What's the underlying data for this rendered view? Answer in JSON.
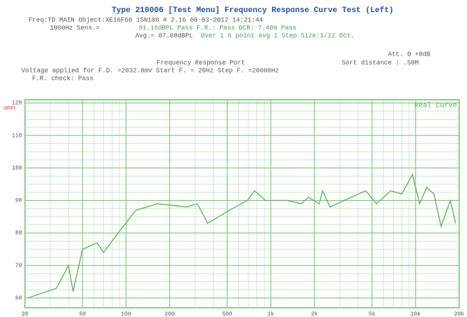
{
  "header": {
    "title": "Type 210006   [Test Menu] Frequency Response Curve Test (Left)",
    "line1": "Freq:TD MAIN      Object:XE16F60    1SN106      # 2.16   00-03-2012  14:21:44",
    "line2a": "1000Hz Sens.=",
    "line2b": "91.16dBPL Pass     F.R.: Pass    DCR:  7.400 Pass",
    "line3a": "Avg.= 87.08dBPL",
    "line3b": "Over 1 6 point avg   1   Step Size:1/12 Oct.",
    "att": "Att. 0  +0dB",
    "port": "Frequency Response Port",
    "sort": "Sort distance : .50M",
    "voltage": "Voltage applied for   F.D. =2032.8mV    Start F. =  20Hz      Step F. =20000Hz",
    "check": "F.R. check: Pass"
  },
  "chart_data": {
    "type": "line",
    "y_unit": "dBSPL",
    "xscale": "log",
    "grid": true,
    "legend": "top-right",
    "xlim": [
      20,
      20000
    ],
    "ylim": [
      57,
      121
    ],
    "xticks": [
      20,
      50,
      100,
      200,
      500,
      {
        "value": 1000,
        "label": "1k"
      },
      {
        "value": 2000,
        "label": "2k"
      },
      {
        "value": 5000,
        "label": "5k"
      },
      {
        "value": 10000,
        "label": "10k"
      },
      {
        "value": 20000,
        "label": "20k"
      }
    ],
    "yticks": [
      60,
      70,
      80,
      90,
      100,
      110,
      120
    ],
    "x": [
      21,
      33,
      40,
      43,
      50,
      63,
      70,
      88,
      117,
      165,
      261,
      310,
      367,
      518,
      688,
      772,
      916,
      1292,
      1622,
      1816,
      2158,
      2280,
      2560,
      3600,
      4520,
      5370,
      6740,
      8020,
      9510,
      10660,
      11940,
      13400,
      15000,
      17400,
      18900
    ],
    "series": [
      {
        "name": "Real Curve",
        "color": "#5fae5f",
        "values": [
          60,
          63,
          70,
          62,
          75,
          77,
          74,
          80,
          87,
          89,
          88,
          89,
          83,
          87,
          90,
          93,
          90,
          90,
          89,
          91,
          89,
          93,
          88,
          91,
          93,
          89,
          93,
          92,
          98,
          89,
          94,
          92,
          82,
          90,
          83
        ]
      }
    ]
  }
}
